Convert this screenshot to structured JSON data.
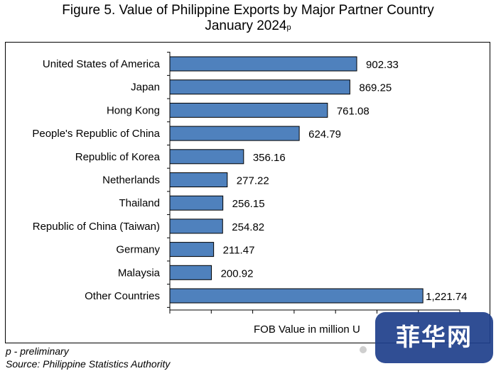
{
  "figure": {
    "title_line1": "Figure 5. Value of Philippine Exports by Major Partner Country",
    "title_line2": "January 2024",
    "title_sup": "p"
  },
  "notes": {
    "preliminary": "p - preliminary",
    "source": "Source: Philippine Statistics Authority"
  },
  "watermark": {
    "text": "菲华网"
  },
  "chart_data": {
    "type": "bar",
    "orientation": "horizontal",
    "categories": [
      "United States of America",
      "Japan",
      "Hong Kong",
      "People's Republic of China",
      "Republic of Korea",
      "Netherlands",
      "Thailand",
      "Republic of China (Taiwan)",
      "Germany",
      "Malaysia",
      "Other Countries"
    ],
    "values": [
      902.33,
      869.25,
      761.08,
      624.79,
      356.16,
      277.22,
      256.15,
      254.82,
      211.47,
      200.92,
      1221.74
    ],
    "value_labels": [
      "902.33",
      "869.25",
      "761.08",
      "624.79",
      "356.16",
      "277.22",
      "256.15",
      "254.82",
      "211.47",
      "200.92",
      "1,221.74"
    ],
    "title": "Figure 5. Value of Philippine Exports by Major Partner Country January 2024p",
    "xlabel": "FOB Value in million U",
    "ylabel": "",
    "xlim": [
      0,
      1400
    ],
    "bar_color": "#4f81bd",
    "grid": false,
    "legend": "none"
  }
}
